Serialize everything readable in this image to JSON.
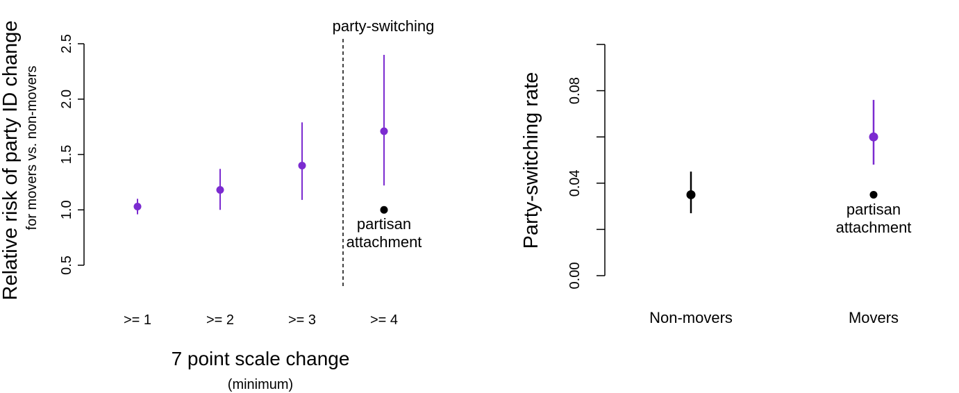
{
  "colors": {
    "purple": "#7b2bd0",
    "black": "#000000"
  },
  "chart_data": [
    {
      "type": "scatter",
      "subtype": "point-with-interval",
      "ylabel": "Relative risk of party ID change",
      "ylabel2": "for movers vs. non-movers",
      "xlabel": "7 point scale change",
      "xlabel_sub": "(minimum)",
      "categories": [
        ">= 1",
        ">= 2",
        ">= 3",
        ">= 4"
      ],
      "ylim": [
        0.5,
        2.5
      ],
      "yticks": [
        "0.5",
        "1.0",
        "1.5",
        "2.0",
        "2.5"
      ],
      "divider_label": "party-switching",
      "series": [
        {
          "color": "#7b2bd0",
          "points": [
            {
              "x": ">= 1",
              "y": 1.03,
              "lo": 0.96,
              "hi": 1.1
            },
            {
              "x": ">= 2",
              "y": 1.18,
              "lo": 1.0,
              "hi": 1.37
            },
            {
              "x": ">= 3",
              "y": 1.4,
              "lo": 1.09,
              "hi": 1.79
            },
            {
              "x": ">= 4",
              "y": 1.71,
              "lo": 1.22,
              "hi": 2.4
            }
          ]
        },
        {
          "color": "#000000",
          "points": [
            {
              "x": ">= 4",
              "y": 1.0,
              "label": "partisan attachment"
            }
          ]
        }
      ],
      "annotation_lines": [
        "partisan",
        "attachment"
      ],
      "grid": false
    },
    {
      "type": "scatter",
      "subtype": "point-with-interval",
      "ylabel": "Party-switching rate",
      "categories": [
        "Non-movers",
        "Movers"
      ],
      "ylim": [
        0.0,
        0.1
      ],
      "yticks": [
        "0.00",
        "0.04",
        "0.08"
      ],
      "series": [
        {
          "color": "#000000",
          "points": [
            {
              "x": "Non-movers",
              "y": 0.035,
              "lo": 0.027,
              "hi": 0.045
            }
          ]
        },
        {
          "color": "#7b2bd0",
          "points": [
            {
              "x": "Movers",
              "y": 0.06,
              "lo": 0.048,
              "hi": 0.076
            }
          ]
        },
        {
          "color": "#000000",
          "points": [
            {
              "x": "Movers",
              "y": 0.035,
              "label": "partisan attachment"
            }
          ]
        }
      ],
      "annotation_lines": [
        "partisan",
        "attachment"
      ],
      "grid": false
    }
  ]
}
